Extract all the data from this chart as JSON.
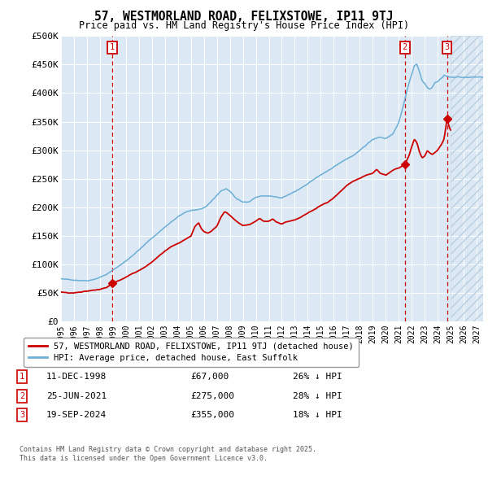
{
  "title": "57, WESTMORLAND ROAD, FELIXSTOWE, IP11 9TJ",
  "subtitle": "Price paid vs. HM Land Registry's House Price Index (HPI)",
  "ylabel_ticks": [
    "£0",
    "£50K",
    "£100K",
    "£150K",
    "£200K",
    "£250K",
    "£300K",
    "£350K",
    "£400K",
    "£450K",
    "£500K"
  ],
  "ytick_values": [
    0,
    50000,
    100000,
    150000,
    200000,
    250000,
    300000,
    350000,
    400000,
    450000,
    500000
  ],
  "ylim": [
    0,
    500000
  ],
  "xlim_start": 1995.0,
  "xlim_end": 2027.5,
  "hpi_color": "#6baed6",
  "price_color": "#cc0000",
  "dashed_color": "#cc0000",
  "background_color": "#dce9f5",
  "grid_color": "#ffffff",
  "sale_points": [
    {
      "date_num": 1998.95,
      "price": 67000,
      "label": "1"
    },
    {
      "date_num": 2021.48,
      "price": 275000,
      "label": "2"
    },
    {
      "date_num": 2024.72,
      "price": 355000,
      "label": "3"
    }
  ],
  "legend_line1": "57, WESTMORLAND ROAD, FELIXSTOWE, IP11 9TJ (detached house)",
  "legend_line2": "HPI: Average price, detached house, East Suffolk",
  "table_data": [
    [
      "1",
      "11-DEC-1998",
      "£67,000",
      "26% ↓ HPI"
    ],
    [
      "2",
      "25-JUN-2021",
      "£275,000",
      "28% ↓ HPI"
    ],
    [
      "3",
      "19-SEP-2024",
      "£355,000",
      "18% ↓ HPI"
    ]
  ],
  "footnote": "Contains HM Land Registry data © Crown copyright and database right 2025.\nThis data is licensed under the Open Government Licence v3.0.",
  "future_start": 2025.0,
  "hpi_anchors": [
    [
      1995.0,
      75000
    ],
    [
      1995.5,
      73000
    ],
    [
      1996.0,
      73000
    ],
    [
      1996.5,
      73000
    ],
    [
      1997.0,
      73000
    ],
    [
      1997.5,
      76000
    ],
    [
      1998.0,
      80000
    ],
    [
      1998.5,
      85000
    ],
    [
      1999.0,
      92000
    ],
    [
      1999.5,
      100000
    ],
    [
      2000.0,
      108000
    ],
    [
      2000.5,
      118000
    ],
    [
      2001.0,
      128000
    ],
    [
      2001.5,
      138000
    ],
    [
      2002.0,
      148000
    ],
    [
      2002.5,
      158000
    ],
    [
      2003.0,
      168000
    ],
    [
      2003.5,
      177000
    ],
    [
      2004.0,
      185000
    ],
    [
      2004.5,
      192000
    ],
    [
      2005.0,
      195000
    ],
    [
      2005.5,
      197000
    ],
    [
      2006.0,
      200000
    ],
    [
      2006.5,
      208000
    ],
    [
      2007.0,
      220000
    ],
    [
      2007.3,
      228000
    ],
    [
      2007.7,
      232000
    ],
    [
      2008.0,
      228000
    ],
    [
      2008.5,
      215000
    ],
    [
      2009.0,
      208000
    ],
    [
      2009.5,
      210000
    ],
    [
      2010.0,
      218000
    ],
    [
      2010.5,
      220000
    ],
    [
      2011.0,
      220000
    ],
    [
      2011.5,
      218000
    ],
    [
      2012.0,
      215000
    ],
    [
      2012.5,
      220000
    ],
    [
      2013.0,
      225000
    ],
    [
      2013.5,
      232000
    ],
    [
      2014.0,
      240000
    ],
    [
      2014.5,
      248000
    ],
    [
      2015.0,
      255000
    ],
    [
      2015.5,
      260000
    ],
    [
      2016.0,
      268000
    ],
    [
      2016.5,
      275000
    ],
    [
      2017.0,
      282000
    ],
    [
      2017.5,
      288000
    ],
    [
      2018.0,
      295000
    ],
    [
      2018.5,
      305000
    ],
    [
      2019.0,
      315000
    ],
    [
      2019.5,
      320000
    ],
    [
      2020.0,
      318000
    ],
    [
      2020.5,
      325000
    ],
    [
      2021.0,
      345000
    ],
    [
      2021.3,
      370000
    ],
    [
      2021.5,
      390000
    ],
    [
      2021.8,
      415000
    ],
    [
      2022.0,
      430000
    ],
    [
      2022.2,
      445000
    ],
    [
      2022.4,
      448000
    ],
    [
      2022.6,
      435000
    ],
    [
      2022.8,
      420000
    ],
    [
      2023.0,
      415000
    ],
    [
      2023.2,
      408000
    ],
    [
      2023.4,
      405000
    ],
    [
      2023.6,
      410000
    ],
    [
      2023.8,
      418000
    ],
    [
      2024.0,
      420000
    ],
    [
      2024.2,
      425000
    ],
    [
      2024.4,
      428000
    ],
    [
      2024.5,
      432000
    ],
    [
      2024.7,
      430000
    ],
    [
      2025.0,
      428000
    ],
    [
      2027.5,
      428000
    ]
  ],
  "price_anchors": [
    [
      1995.0,
      52000
    ],
    [
      1995.5,
      50000
    ],
    [
      1996.0,
      50000
    ],
    [
      1996.5,
      51000
    ],
    [
      1997.0,
      52000
    ],
    [
      1997.5,
      54000
    ],
    [
      1998.0,
      56000
    ],
    [
      1998.5,
      60000
    ],
    [
      1998.95,
      67000
    ],
    [
      1999.5,
      72000
    ],
    [
      2000.0,
      78000
    ],
    [
      2000.5,
      85000
    ],
    [
      2001.0,
      90000
    ],
    [
      2001.5,
      97000
    ],
    [
      2002.0,
      105000
    ],
    [
      2002.5,
      115000
    ],
    [
      2003.0,
      125000
    ],
    [
      2003.5,
      133000
    ],
    [
      2004.0,
      138000
    ],
    [
      2004.5,
      145000
    ],
    [
      2005.0,
      152000
    ],
    [
      2005.3,
      168000
    ],
    [
      2005.6,
      175000
    ],
    [
      2005.8,
      165000
    ],
    [
      2006.0,
      160000
    ],
    [
      2006.3,
      158000
    ],
    [
      2006.6,
      162000
    ],
    [
      2007.0,
      170000
    ],
    [
      2007.3,
      185000
    ],
    [
      2007.6,
      195000
    ],
    [
      2007.8,
      192000
    ],
    [
      2008.0,
      188000
    ],
    [
      2008.5,
      178000
    ],
    [
      2009.0,
      170000
    ],
    [
      2009.5,
      172000
    ],
    [
      2010.0,
      178000
    ],
    [
      2010.3,
      183000
    ],
    [
      2010.6,
      178000
    ],
    [
      2011.0,
      178000
    ],
    [
      2011.3,
      182000
    ],
    [
      2011.6,
      176000
    ],
    [
      2012.0,
      172000
    ],
    [
      2012.3,
      176000
    ],
    [
      2012.6,
      178000
    ],
    [
      2013.0,
      180000
    ],
    [
      2013.5,
      185000
    ],
    [
      2014.0,
      192000
    ],
    [
      2014.5,
      198000
    ],
    [
      2015.0,
      205000
    ],
    [
      2015.5,
      210000
    ],
    [
      2016.0,
      218000
    ],
    [
      2016.5,
      228000
    ],
    [
      2017.0,
      238000
    ],
    [
      2017.5,
      245000
    ],
    [
      2018.0,
      250000
    ],
    [
      2018.5,
      255000
    ],
    [
      2019.0,
      258000
    ],
    [
      2019.3,
      265000
    ],
    [
      2019.6,
      258000
    ],
    [
      2020.0,
      255000
    ],
    [
      2020.3,
      260000
    ],
    [
      2020.6,
      265000
    ],
    [
      2021.0,
      268000
    ],
    [
      2021.48,
      275000
    ],
    [
      2021.8,
      290000
    ],
    [
      2022.0,
      305000
    ],
    [
      2022.2,
      318000
    ],
    [
      2022.4,
      312000
    ],
    [
      2022.6,
      295000
    ],
    [
      2022.8,
      285000
    ],
    [
      2023.0,
      288000
    ],
    [
      2023.2,
      298000
    ],
    [
      2023.4,
      295000
    ],
    [
      2023.6,
      292000
    ],
    [
      2023.8,
      296000
    ],
    [
      2024.0,
      300000
    ],
    [
      2024.3,
      310000
    ],
    [
      2024.5,
      320000
    ],
    [
      2024.72,
      355000
    ],
    [
      2024.9,
      340000
    ],
    [
      2025.0,
      335000
    ]
  ]
}
